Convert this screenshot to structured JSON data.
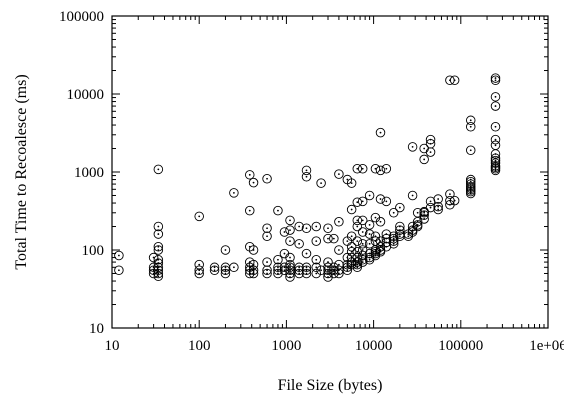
{
  "chart_data": {
    "type": "scatter",
    "title": "",
    "xlabel": "File Size (bytes)",
    "ylabel": "Total Time to Recoalesce (ms)",
    "xscale": "log",
    "yscale": "log",
    "xlim": [
      10,
      1000000
    ],
    "ylim": [
      10,
      100000
    ],
    "x_ticks": [
      10,
      100,
      1000,
      10000,
      100000,
      1000000
    ],
    "x_tick_labels": [
      "10",
      "100",
      "1000",
      "10000",
      "100000",
      "1e+06"
    ],
    "y_ticks": [
      10,
      100,
      1000,
      10000,
      100000
    ],
    "y_tick_labels": [
      "10",
      "100",
      "1000",
      "10000",
      "100000"
    ],
    "grid": false,
    "marker": "circle-with-dot",
    "series": [
      {
        "points": [
          [
            12,
            85
          ],
          [
            12,
            55
          ],
          [
            30,
            80
          ],
          [
            30,
            60
          ],
          [
            30,
            55
          ],
          [
            30,
            50
          ],
          [
            34,
            1080
          ],
          [
            34,
            200
          ],
          [
            34,
            160
          ],
          [
            34,
            110
          ],
          [
            34,
            100
          ],
          [
            34,
            75
          ],
          [
            34,
            68
          ],
          [
            34,
            60
          ],
          [
            34,
            55
          ],
          [
            34,
            50
          ],
          [
            34,
            46
          ],
          [
            100,
            270
          ],
          [
            100,
            65
          ],
          [
            100,
            55
          ],
          [
            100,
            50
          ],
          [
            150,
            60
          ],
          [
            150,
            55
          ],
          [
            200,
            100
          ],
          [
            200,
            60
          ],
          [
            200,
            55
          ],
          [
            200,
            50
          ],
          [
            250,
            540
          ],
          [
            250,
            60
          ],
          [
            380,
            920
          ],
          [
            380,
            320
          ],
          [
            380,
            110
          ],
          [
            380,
            70
          ],
          [
            380,
            60
          ],
          [
            380,
            55
          ],
          [
            380,
            50
          ],
          [
            420,
            730
          ],
          [
            420,
            100
          ],
          [
            420,
            65
          ],
          [
            420,
            55
          ],
          [
            420,
            50
          ],
          [
            600,
            820
          ],
          [
            600,
            190
          ],
          [
            600,
            150
          ],
          [
            600,
            70
          ],
          [
            600,
            55
          ],
          [
            600,
            50
          ],
          [
            800,
            320
          ],
          [
            800,
            75
          ],
          [
            800,
            60
          ],
          [
            800,
            55
          ],
          [
            800,
            50
          ],
          [
            950,
            170
          ],
          [
            950,
            90
          ],
          [
            950,
            60
          ],
          [
            950,
            55
          ],
          [
            1100,
            240
          ],
          [
            1100,
            180
          ],
          [
            1100,
            130
          ],
          [
            1100,
            80
          ],
          [
            1100,
            65
          ],
          [
            1100,
            60
          ],
          [
            1100,
            55
          ],
          [
            1100,
            50
          ],
          [
            1100,
            45
          ],
          [
            1400,
            200
          ],
          [
            1400,
            120
          ],
          [
            1400,
            60
          ],
          [
            1400,
            55
          ],
          [
            1400,
            50
          ],
          [
            1700,
            1050
          ],
          [
            1700,
            870
          ],
          [
            1700,
            190
          ],
          [
            1700,
            90
          ],
          [
            1700,
            60
          ],
          [
            1700,
            55
          ],
          [
            1700,
            50
          ],
          [
            2200,
            200
          ],
          [
            2200,
            130
          ],
          [
            2200,
            75
          ],
          [
            2200,
            60
          ],
          [
            2200,
            50
          ],
          [
            2500,
            720
          ],
          [
            2500,
            55
          ],
          [
            3000,
            190
          ],
          [
            3000,
            140
          ],
          [
            3000,
            70
          ],
          [
            3000,
            60
          ],
          [
            3000,
            55
          ],
          [
            3000,
            50
          ],
          [
            3000,
            45
          ],
          [
            3500,
            140
          ],
          [
            3500,
            60
          ],
          [
            3500,
            55
          ],
          [
            3500,
            50
          ],
          [
            4000,
            940
          ],
          [
            4000,
            230
          ],
          [
            4000,
            100
          ],
          [
            4000,
            65
          ],
          [
            4000,
            55
          ],
          [
            4000,
            50
          ],
          [
            5000,
            800
          ],
          [
            5000,
            130
          ],
          [
            5000,
            80
          ],
          [
            5000,
            65
          ],
          [
            5000,
            60
          ],
          [
            5000,
            55
          ],
          [
            5600,
            720
          ],
          [
            5600,
            330
          ],
          [
            5600,
            150
          ],
          [
            5600,
            110
          ],
          [
            5600,
            95
          ],
          [
            5600,
            80
          ],
          [
            5600,
            70
          ],
          [
            5600,
            65
          ],
          [
            6500,
            1100
          ],
          [
            6500,
            410
          ],
          [
            6500,
            240
          ],
          [
            6500,
            200
          ],
          [
            6500,
            130
          ],
          [
            6500,
            95
          ],
          [
            6500,
            80
          ],
          [
            6500,
            70
          ],
          [
            6500,
            65
          ],
          [
            6500,
            60
          ],
          [
            7500,
            1100
          ],
          [
            7500,
            420
          ],
          [
            7500,
            240
          ],
          [
            7500,
            170
          ],
          [
            7500,
            120
          ],
          [
            7500,
            100
          ],
          [
            7500,
            85
          ],
          [
            7500,
            75
          ],
          [
            7500,
            70
          ],
          [
            9000,
            500
          ],
          [
            9000,
            210
          ],
          [
            9000,
            160
          ],
          [
            9000,
            120
          ],
          [
            9000,
            90
          ],
          [
            9000,
            80
          ],
          [
            9000,
            75
          ],
          [
            10500,
            1100
          ],
          [
            10500,
            260
          ],
          [
            10500,
            150
          ],
          [
            10500,
            130
          ],
          [
            10500,
            100
          ],
          [
            10500,
            95
          ],
          [
            10500,
            90
          ],
          [
            10500,
            85
          ],
          [
            12000,
            3200
          ],
          [
            12000,
            1050
          ],
          [
            12000,
            450
          ],
          [
            12000,
            230
          ],
          [
            12000,
            130
          ],
          [
            12000,
            110
          ],
          [
            12000,
            100
          ],
          [
            12000,
            95
          ],
          [
            14000,
            1100
          ],
          [
            14000,
            420
          ],
          [
            14000,
            160
          ],
          [
            14000,
            140
          ],
          [
            14000,
            125
          ],
          [
            14000,
            110
          ],
          [
            17000,
            300
          ],
          [
            17000,
            150
          ],
          [
            17000,
            140
          ],
          [
            17000,
            130
          ],
          [
            17000,
            120
          ],
          [
            20000,
            350
          ],
          [
            20000,
            200
          ],
          [
            20000,
            180
          ],
          [
            20000,
            160
          ],
          [
            20000,
            150
          ],
          [
            25000,
            160
          ],
          [
            25000,
            150
          ],
          [
            28000,
            2100
          ],
          [
            28000,
            500
          ],
          [
            28000,
            200
          ],
          [
            28000,
            180
          ],
          [
            28000,
            170
          ],
          [
            32000,
            300
          ],
          [
            32000,
            230
          ],
          [
            32000,
            210
          ],
          [
            32000,
            200
          ],
          [
            38000,
            2000
          ],
          [
            38000,
            1450
          ],
          [
            38000,
            310
          ],
          [
            38000,
            300
          ],
          [
            38000,
            280
          ],
          [
            38000,
            250
          ],
          [
            45000,
            2600
          ],
          [
            45000,
            2300
          ],
          [
            45000,
            1800
          ],
          [
            45000,
            420
          ],
          [
            45000,
            350
          ],
          [
            55000,
            450
          ],
          [
            55000,
            360
          ],
          [
            55000,
            330
          ],
          [
            75000,
            15000
          ],
          [
            75000,
            520
          ],
          [
            75000,
            430
          ],
          [
            75000,
            380
          ],
          [
            85000,
            15000
          ],
          [
            85000,
            430
          ],
          [
            130000,
            4600
          ],
          [
            130000,
            3800
          ],
          [
            130000,
            1900
          ],
          [
            130000,
            800
          ],
          [
            130000,
            750
          ],
          [
            130000,
            700
          ],
          [
            130000,
            650
          ],
          [
            130000,
            620
          ],
          [
            130000,
            590
          ],
          [
            130000,
            560
          ],
          [
            130000,
            530
          ],
          [
            250000,
            16000
          ],
          [
            250000,
            15000
          ],
          [
            250000,
            9200
          ],
          [
            250000,
            7000
          ],
          [
            250000,
            3800
          ],
          [
            250000,
            2600
          ],
          [
            250000,
            2200
          ],
          [
            250000,
            1700
          ],
          [
            250000,
            1500
          ],
          [
            250000,
            1400
          ],
          [
            250000,
            1300
          ],
          [
            250000,
            1200
          ],
          [
            250000,
            1150
          ],
          [
            250000,
            1100
          ],
          [
            250000,
            1050
          ]
        ]
      }
    ]
  }
}
